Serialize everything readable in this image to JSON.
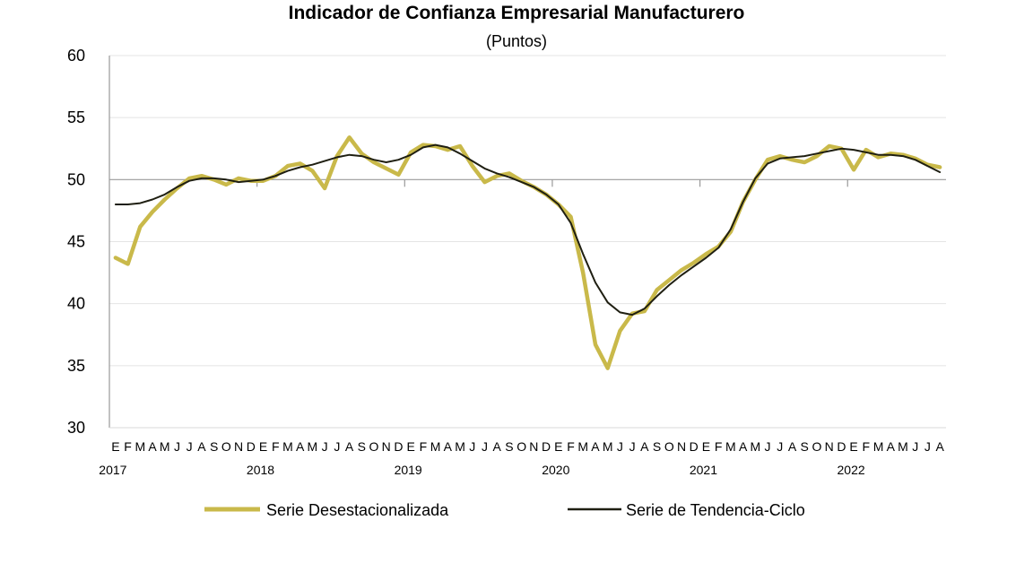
{
  "chart_data": {
    "type": "line",
    "title": "Indicador de Confianza Empresarial Manufacturero",
    "subtitle": "(Puntos)",
    "ylim": [
      30,
      60
    ],
    "yticks": [
      30,
      35,
      40,
      45,
      50,
      55,
      60
    ],
    "grid": true,
    "legend_position": "bottom",
    "month_letters": [
      "E",
      "F",
      "M",
      "A",
      "M",
      "J",
      "J",
      "A",
      "S",
      "O",
      "N",
      "D"
    ],
    "years": [
      "2017",
      "2018",
      "2019",
      "2020",
      "2021",
      "2022"
    ],
    "series": [
      {
        "name": "Serie Desestacionalizada",
        "color": "#C9B94A",
        "values": [
          43.7,
          43.2,
          46.2,
          47.4,
          48.4,
          49.3,
          50.1,
          50.3,
          50.0,
          49.6,
          50.1,
          49.9,
          49.9,
          50.3,
          51.1,
          51.3,
          50.7,
          49.3,
          51.9,
          53.4,
          52.1,
          51.4,
          50.9,
          50.4,
          52.2,
          52.8,
          52.7,
          52.4,
          52.7,
          51.1,
          49.8,
          50.3,
          50.5,
          49.9,
          49.4,
          48.8,
          48.0,
          47.0,
          42.5,
          36.7,
          34.8,
          37.8,
          39.2,
          39.4,
          41.1,
          41.9,
          42.7,
          43.3,
          44.0,
          44.6,
          45.8,
          48.2,
          50.0,
          51.6,
          51.9,
          51.6,
          51.4,
          51.9,
          52.7,
          52.5,
          50.8,
          52.4,
          51.8,
          52.1,
          52.0,
          51.7,
          51.2,
          51.0
        ]
      },
      {
        "name": "Serie de Tendencia-Ciclo",
        "color": "#1F1F12",
        "values": [
          48.0,
          48.0,
          48.1,
          48.4,
          48.8,
          49.4,
          49.9,
          50.1,
          50.1,
          50.0,
          49.8,
          49.9,
          50.0,
          50.3,
          50.7,
          51.0,
          51.2,
          51.5,
          51.8,
          52.0,
          51.9,
          51.6,
          51.4,
          51.6,
          52.0,
          52.6,
          52.8,
          52.6,
          52.1,
          51.5,
          50.9,
          50.5,
          50.2,
          49.8,
          49.4,
          48.8,
          48.0,
          46.5,
          44.0,
          41.7,
          40.1,
          39.3,
          39.1,
          39.6,
          40.6,
          41.5,
          42.3,
          43.0,
          43.7,
          44.5,
          46.0,
          48.2,
          50.1,
          51.3,
          51.7,
          51.8,
          51.9,
          52.1,
          52.3,
          52.5,
          52.4,
          52.2,
          52.0,
          52.0,
          51.9,
          51.6,
          51.1,
          50.6
        ]
      }
    ]
  }
}
